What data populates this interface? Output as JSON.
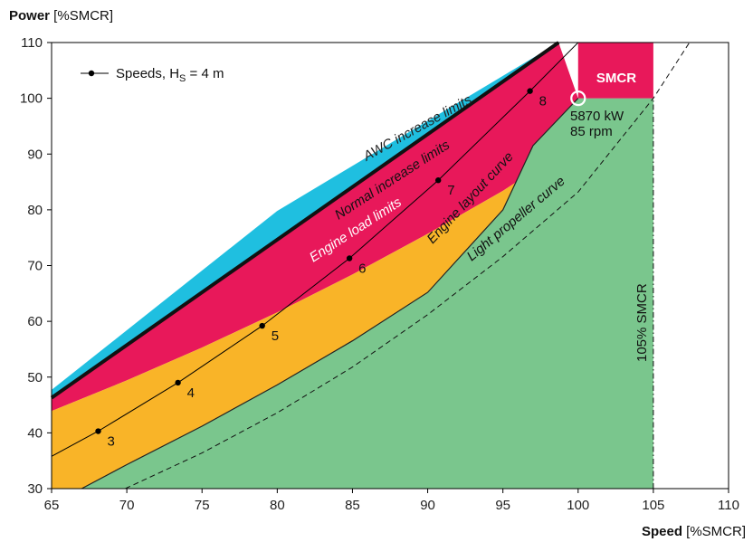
{
  "chart_data": {
    "type": "area",
    "xlabel_bold": "Speed",
    "xlabel_unit": " [%SMCR]",
    "ylabel_bold": "Power",
    "ylabel_unit": " [%SMCR]",
    "xlim": [
      65,
      110
    ],
    "ylim": [
      30,
      110
    ],
    "xticks": [
      65,
      70,
      75,
      80,
      85,
      90,
      95,
      100,
      105,
      110
    ],
    "yticks": [
      30,
      40,
      50,
      60,
      70,
      80,
      90,
      100,
      110
    ],
    "grid": false,
    "colors": {
      "awc": "#1fbfe0",
      "normal": "#111111",
      "engine_load": "#e8185a",
      "layout": "#f9b428",
      "propeller": "#7ac68d",
      "smcr_box": "#e8185a"
    },
    "regions": {
      "awc_upper": [
        [
          65,
          47.7
        ],
        [
          80,
          79.8
        ],
        [
          98.7,
          110
        ]
      ],
      "normal_upper": [
        [
          65,
          46.3
        ],
        [
          98.7,
          110
        ]
      ],
      "engine_load_upper": [
        [
          65,
          46.3
        ],
        [
          98.7,
          110
        ]
      ],
      "engine_load_lower": [
        [
          65,
          43.9
        ],
        [
          70,
          49.4
        ],
        [
          75,
          55.3
        ],
        [
          80,
          61.6
        ],
        [
          85,
          68.4
        ],
        [
          90,
          75.7
        ],
        [
          95,
          83.4
        ],
        [
          97.6,
          88
        ],
        [
          100,
          100
        ]
      ],
      "layout_lower": [
        [
          67,
          30
        ],
        [
          70,
          34.3
        ],
        [
          75,
          41.2
        ],
        [
          80,
          48.6
        ],
        [
          85,
          56.5
        ],
        [
          90,
          65.2
        ],
        [
          95,
          80
        ],
        [
          97,
          91.5
        ],
        [
          100,
          100
        ]
      ],
      "propeller_lower": [
        [
          69.9,
          30
        ],
        [
          75,
          36.4
        ],
        [
          80,
          43.6
        ],
        [
          85,
          51.8
        ],
        [
          90,
          61.2
        ],
        [
          95,
          71.6
        ],
        [
          100,
          83.2
        ],
        [
          105,
          100
        ]
      ]
    },
    "smcr_box": {
      "x": [
        100,
        105
      ],
      "y": [
        100,
        110
      ],
      "label": "SMCR"
    },
    "smcr_point": {
      "x": 100,
      "y": 100,
      "line1": "5870 kW",
      "line2": "85 rpm"
    },
    "vline_105": {
      "x": 105,
      "label": "105% SMCR"
    },
    "light_propeller_dashed": [
      [
        69.9,
        30
      ],
      [
        75,
        36.4
      ],
      [
        80,
        43.6
      ],
      [
        85,
        51.8
      ],
      [
        90,
        61.2
      ],
      [
        95,
        71.6
      ],
      [
        100,
        83.2
      ],
      [
        105,
        100
      ],
      [
        107.4,
        110
      ]
    ],
    "series": [
      {
        "name": "Speeds, H",
        "name_sub": "S",
        "name_tail": " = 4 m",
        "x": [
          65,
          68.1,
          73.4,
          79.0,
          84.8,
          90.7,
          96.8,
          100
        ],
        "y": [
          35.8,
          40.3,
          49.0,
          59.2,
          71.3,
          85.3,
          101.3,
          110
        ],
        "labels": [
          "",
          "3",
          "4",
          "5",
          "6",
          "7",
          "8",
          ""
        ]
      }
    ],
    "curve_labels": {
      "awc": "AWC increase limits",
      "normal": "Normal increase limits",
      "engine_load": "Engine load limits",
      "layout": "Engine layout curve",
      "propeller": "Light propeller curve"
    }
  }
}
